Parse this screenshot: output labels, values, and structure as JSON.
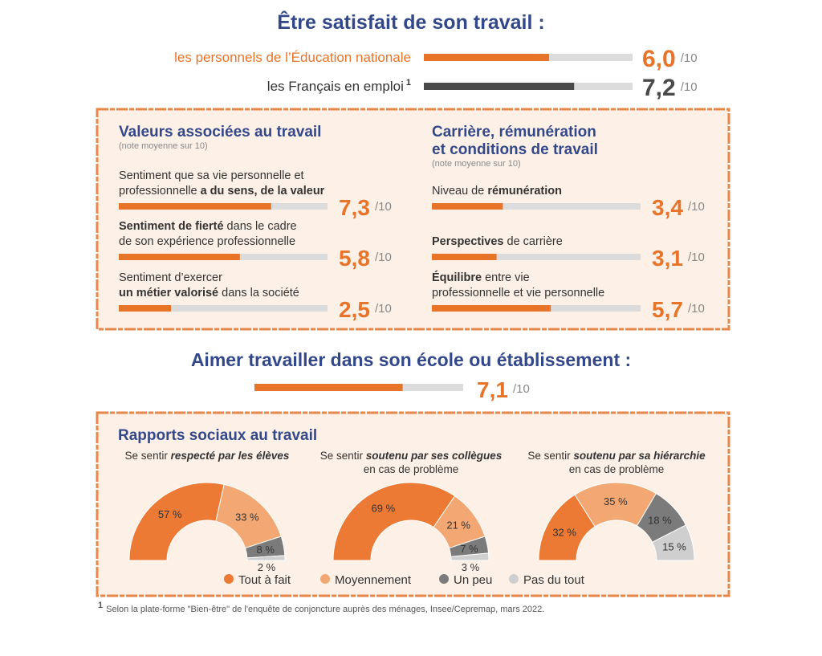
{
  "colors": {
    "accent": "#e8742a",
    "track": "#dcdcdc",
    "heading": "#33488a",
    "box_fill": "#fdf1e7",
    "box_border": "#e8874a"
  },
  "satisfaction": {
    "title": "Être satisfait de son travail :",
    "max": {
      "value": 10,
      "label": "/10"
    },
    "items": [
      {
        "label": "les personnels de l’Éducation nationale",
        "value": 6.0,
        "value_label": "6,0",
        "color": "#e8742a"
      },
      {
        "label": "les Français en emploi",
        "footnote_mark": "1",
        "value": 7.2,
        "value_label": "7,2",
        "color": "#4a4a4a"
      }
    ]
  },
  "values_box": {
    "title_lines": [
      "Valeurs associées au travail"
    ],
    "subtitle": "(note moyenne sur 10)",
    "items": [
      {
        "label_lines": [
          [
            {
              "text": "Sentiment que sa vie personnelle et"
            }
          ],
          [
            {
              "text": "professionnelle "
            },
            {
              "text": "a du sens, de la valeur",
              "bold": true
            }
          ]
        ],
        "value": 7.3,
        "value_label": "7,3"
      },
      {
        "label_lines": [
          [
            {
              "text": "Sentiment de fierté",
              "bold": true
            },
            {
              "text": " dans le cadre"
            }
          ],
          [
            {
              "text": "de son expérience professionnelle"
            }
          ]
        ],
        "value": 5.8,
        "value_label": "5,8"
      },
      {
        "label_lines": [
          [
            {
              "text": "Sentiment d’exercer"
            }
          ],
          [
            {
              "text": "un métier valorisé",
              "bold": true
            },
            {
              "text": " dans la société"
            }
          ]
        ],
        "value": 2.5,
        "value_label": "2,5"
      }
    ]
  },
  "career_box": {
    "title_lines": [
      "Carrière, rémunération",
      "et conditions de travail"
    ],
    "subtitle": "(note moyenne sur 10)",
    "items": [
      {
        "label_lines": [
          [
            {
              "text": "Niveau de "
            },
            {
              "text": "rémunération",
              "bold": true
            }
          ]
        ],
        "value": 3.4,
        "value_label": "3,4"
      },
      {
        "label_lines": [
          [
            {
              "text": "Perspectives",
              "bold": true
            },
            {
              "text": " de carrière"
            }
          ]
        ],
        "value": 3.1,
        "value_label": "3,1"
      },
      {
        "label_lines": [
          [
            {
              "text": "Équilibre",
              "bold": true
            },
            {
              "text": " entre vie"
            }
          ],
          [
            {
              "text": "professionnelle et vie personnelle"
            }
          ]
        ],
        "value": 5.7,
        "value_label": "5,7"
      }
    ]
  },
  "school": {
    "title": "Aimer travailler dans son école ou établissement :",
    "value": 7.1,
    "value_label": "7,1"
  },
  "social": {
    "title": "Rapports sociaux au travail",
    "categories": [
      {
        "name": "Tout à fait",
        "color": "#ec7a35"
      },
      {
        "name": "Moyennement",
        "color": "#f3a874"
      },
      {
        "name": "Un peu",
        "color": "#7b7b7b"
      },
      {
        "name": "Pas du tout",
        "color": "#cfcfcf"
      }
    ],
    "charts": [
      {
        "title_lines": [
          [
            {
              "text": "Se sentir "
            },
            {
              "text": "respecté par les élèves",
              "bold": true
            }
          ]
        ],
        "values": [
          57,
          33,
          8,
          2
        ],
        "value_labels": [
          "57 %",
          "33 %",
          "8 %",
          "2 %"
        ]
      },
      {
        "title_lines": [
          [
            {
              "text": "Se sentir "
            },
            {
              "text": "soutenu par ses collègues",
              "bold": true
            }
          ],
          [
            {
              "text": "en cas de problème"
            }
          ]
        ],
        "values": [
          69,
          21,
          7,
          3
        ],
        "value_labels": [
          "69 %",
          "21 %",
          "7 %",
          "3 %"
        ]
      },
      {
        "title_lines": [
          [
            {
              "text": "Se sentir "
            },
            {
              "text": "soutenu par sa hiérarchie",
              "bold": true
            }
          ],
          [
            {
              "text": "en cas de problème"
            }
          ]
        ],
        "values": [
          32,
          35,
          18,
          15
        ],
        "value_labels": [
          "32 %",
          "35 %",
          "18 %",
          "15 %"
        ]
      }
    ]
  },
  "footnote": {
    "mark": "1",
    "text": "Selon la plate-forme \"Bien-être\" de l'enquête de conjoncture auprès des ménages, Insee/Cepremap, mars 2022."
  }
}
